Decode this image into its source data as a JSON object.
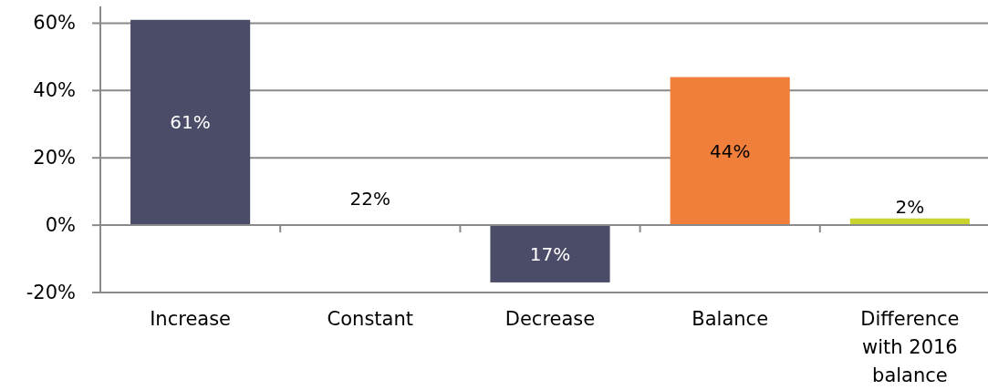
{
  "chart_data": {
    "type": "bar",
    "categories": [
      "Increase",
      "Constant",
      "Decrease",
      "Balance",
      "Difference with 2016 balance"
    ],
    "values": [
      61,
      null,
      17,
      44,
      2
    ],
    "base": [
      0,
      null,
      -17,
      0,
      0
    ],
    "colors": [
      "#4a4c68",
      null,
      "#4a4c68",
      "#f07f3c",
      "#c9d32e"
    ],
    "value_labels": [
      "61%",
      null,
      "17%",
      "44%",
      "2%"
    ],
    "annotations": [
      "22%"
    ],
    "ylim": [
      -20,
      65
    ],
    "yticks": [
      {
        "value": -20,
        "label": "-20%"
      },
      {
        "value": 0,
        "label": "0%"
      },
      {
        "value": 20,
        "label": "20%"
      },
      {
        "value": 40,
        "label": "40%"
      },
      {
        "value": 60,
        "label": "60%"
      }
    ],
    "grid": "y"
  }
}
